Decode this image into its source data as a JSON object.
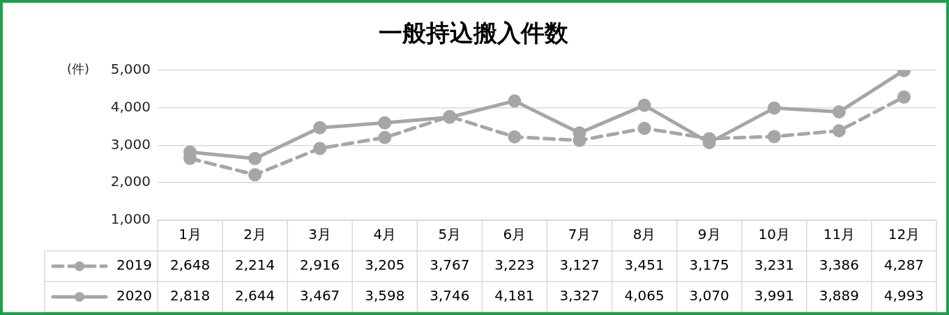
{
  "chart_data": {
    "type": "line",
    "title": "一般持込搬入件数",
    "ylabel": "(件)",
    "categories": [
      "1月",
      "2月",
      "3月",
      "4月",
      "5月",
      "6月",
      "7月",
      "8月",
      "9月",
      "10月",
      "11月",
      "12月"
    ],
    "series": [
      {
        "name": "2019",
        "color": "#a6a6a6",
        "line_style": "dashed",
        "values": [
          2648,
          2214,
          2916,
          3205,
          3767,
          3223,
          3127,
          3451,
          3175,
          3231,
          3386,
          4287
        ],
        "value_labels": [
          "2,648",
          "2,214",
          "2,916",
          "3,205",
          "3,767",
          "3,223",
          "3,127",
          "3,451",
          "3,175",
          "3,231",
          "3,386",
          "4,287"
        ]
      },
      {
        "name": "2020",
        "color": "#a6a6a6",
        "line_style": "solid",
        "values": [
          2818,
          2644,
          3467,
          3598,
          3746,
          4181,
          3327,
          4065,
          3070,
          3991,
          3889,
          4993
        ],
        "value_labels": [
          "2,818",
          "2,644",
          "3,467",
          "3,598",
          "3,746",
          "4,181",
          "3,327",
          "4,065",
          "3,070",
          "3,991",
          "3,889",
          "4,993"
        ]
      }
    ],
    "ylim": [
      1000,
      5000
    ],
    "yticks": [
      {
        "value": 1000,
        "label": "1,000"
      },
      {
        "value": 2000,
        "label": "2,000"
      },
      {
        "value": 3000,
        "label": "3,000"
      },
      {
        "value": 4000,
        "label": "4,000"
      },
      {
        "value": 5000,
        "label": "5,000"
      }
    ],
    "grid": "y",
    "marker": "circle",
    "legend": "bottom"
  }
}
